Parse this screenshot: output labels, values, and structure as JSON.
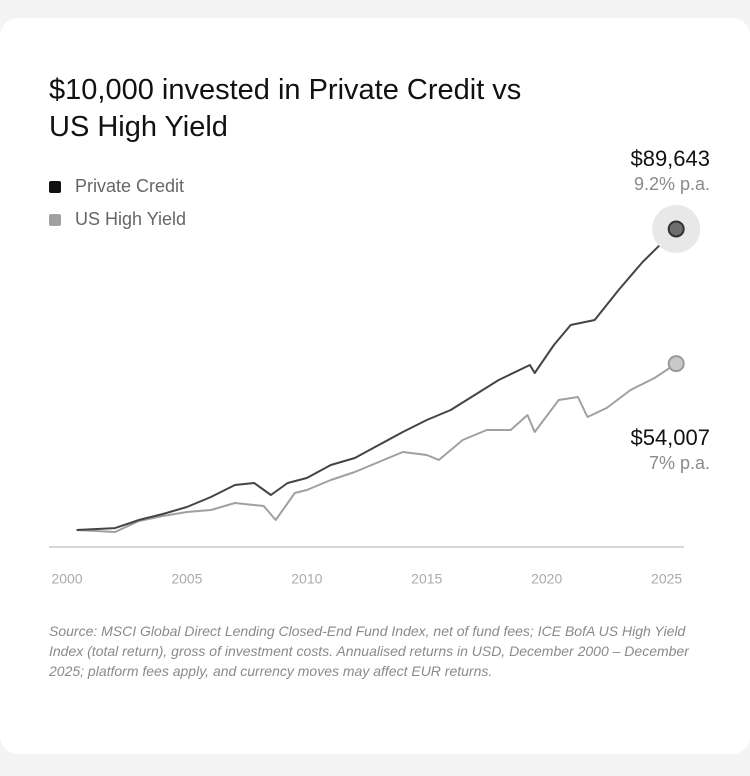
{
  "chart_data": {
    "type": "line",
    "title": "$10,000 invested in Private Credit vs US High Yield",
    "source": "Source: MSCI Global Direct Lending Closed-End Fund Index, net of fund fees; ICE BofA US High Yield Index (total return), gross of investment costs. Annualised returns in USD, December 2000 – December 2025; platform fees apply, and currency moves may affect EUR returns.",
    "xlim": [
      1999.25,
      2025.7
    ],
    "xticks": [
      2000,
      2005,
      2010,
      2015,
      2020,
      2025
    ],
    "ylim": [
      5500,
      95000
    ],
    "grid": false,
    "legend": "upper left",
    "series": [
      {
        "name": "Private Credit",
        "color": "#444444",
        "x": [
          2000.4,
          2002,
          2003,
          2004,
          2005,
          2006,
          2007,
          2007.8,
          2008.5,
          2009.2,
          2010,
          2011,
          2012,
          2013,
          2014,
          2015,
          2016,
          2017,
          2018,
          2019.3,
          2019.5,
          2020.3,
          2021,
          2022,
          2023,
          2024,
          2025.4
        ],
        "values": [
          10000,
          10500,
          12650,
          14230,
          16080,
          18730,
          21900,
          22430,
          19260,
          22430,
          23760,
          27200,
          29050,
          32490,
          35930,
          39100,
          41750,
          45710,
          49680,
          53650,
          51530,
          58940,
          64230,
          65560,
          73490,
          80900,
          89643
        ],
        "value_labels": [
          null,
          null,
          null,
          null,
          null,
          null,
          null,
          null,
          null,
          null,
          null,
          null,
          null,
          null,
          null,
          null,
          null,
          null,
          null,
          null,
          null,
          null,
          null,
          null,
          null,
          null,
          "$89,643"
        ],
        "note": "9.2% p.a."
      },
      {
        "name": "US High Yield",
        "color": "#a0a0a0",
        "x": [
          2000.4,
          2002,
          2003,
          2004,
          2005,
          2006,
          2007,
          2008.2,
          2008.7,
          2009.5,
          2010,
          2011,
          2012,
          2013,
          2014,
          2015,
          2015.5,
          2016.5,
          2017.5,
          2018.5,
          2019.2,
          2019.5,
          2020.5,
          2021.3,
          2021.7,
          2022.5,
          2023.5,
          2024.5,
          2025.4
        ],
        "values": [
          10000,
          9470,
          12380,
          13700,
          14760,
          15290,
          17140,
          16350,
          12650,
          19790,
          20580,
          23230,
          25340,
          27990,
          30630,
          29840,
          28520,
          33810,
          36450,
          36450,
          40420,
          35930,
          44390,
          45180,
          39890,
          42270,
          47040,
          50210,
          54007
        ],
        "value_labels": [
          null,
          null,
          null,
          null,
          null,
          null,
          null,
          null,
          null,
          null,
          null,
          null,
          null,
          null,
          null,
          null,
          null,
          null,
          null,
          null,
          null,
          null,
          null,
          null,
          null,
          null,
          null,
          null,
          "$54,007"
        ],
        "note": "7% p.a."
      }
    ]
  }
}
